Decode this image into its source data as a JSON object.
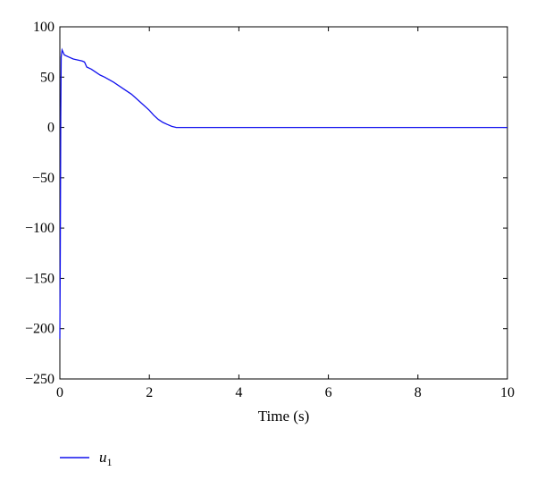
{
  "chart_data": {
    "type": "line",
    "xlabel": "Time (s)",
    "ylabel": "",
    "xlim": [
      0,
      10
    ],
    "ylim": [
      -250,
      100
    ],
    "x_ticks": [
      0,
      2,
      4,
      6,
      8,
      10
    ],
    "y_ticks": [
      100,
      50,
      0,
      -50,
      -100,
      -150,
      -200,
      -250
    ],
    "grid": false,
    "legend_position": "bottom-left",
    "series": [
      {
        "name": "u1",
        "color": "#1010ee",
        "x": [
          0,
          0.01,
          0.02,
          0.03,
          0.05,
          0.1,
          0.2,
          0.3,
          0.4,
          0.5,
          0.55,
          0.6,
          0.7,
          0.8,
          0.9,
          1.0,
          1.2,
          1.4,
          1.6,
          1.8,
          2.0,
          2.1,
          2.2,
          2.3,
          2.4,
          2.5,
          2.6,
          2.7,
          3.0,
          4.0,
          5.0,
          6.0,
          7.0,
          8.0,
          9.0,
          10.0
        ],
        "y": [
          -210,
          -120,
          10,
          70,
          77,
          72,
          70,
          68,
          67,
          66,
          65,
          60,
          58,
          55,
          52,
          50,
          45,
          39,
          33,
          25,
          17,
          12,
          8,
          5,
          3,
          1,
          0,
          0,
          0,
          0,
          0,
          0,
          0,
          0,
          0,
          0
        ]
      }
    ],
    "legend": {
      "label": "u",
      "subscript": "1"
    }
  }
}
